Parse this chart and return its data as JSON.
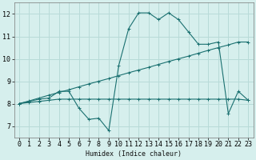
{
  "title": "",
  "xlabel": "Humidex (Indice chaleur)",
  "xlim": [
    -0.5,
    23.5
  ],
  "ylim": [
    6.5,
    12.5
  ],
  "yticks": [
    7,
    8,
    9,
    10,
    11,
    12
  ],
  "xticks": [
    0,
    1,
    2,
    3,
    4,
    5,
    6,
    7,
    8,
    9,
    10,
    11,
    12,
    13,
    14,
    15,
    16,
    17,
    18,
    19,
    20,
    21,
    22,
    23
  ],
  "background_color": "#d6efed",
  "grid_color": "#b8dbd8",
  "line_color": "#1a7070",
  "lines": [
    {
      "x": [
        0,
        1,
        2,
        3,
        4,
        5,
        6,
        7,
        8,
        9,
        10,
        11,
        12,
        13,
        14,
        15,
        16,
        17,
        18,
        19,
        20,
        21,
        22,
        23
      ],
      "y": [
        8.0,
        8.1,
        8.2,
        8.25,
        8.55,
        8.55,
        7.8,
        7.3,
        7.35,
        6.8,
        9.7,
        11.35,
        12.05,
        12.05,
        11.75,
        12.05,
        11.75,
        11.2,
        10.65,
        10.65,
        10.75,
        7.55,
        8.55,
        8.15
      ]
    },
    {
      "x": [
        0,
        1,
        2,
        3,
        4,
        5,
        6,
        7,
        8,
        9,
        10,
        11,
        12,
        13,
        14,
        15,
        16,
        17,
        18,
        19,
        20,
        21,
        22,
        23
      ],
      "y": [
        8.0,
        8.05,
        8.1,
        8.15,
        8.2,
        8.2,
        8.2,
        8.2,
        8.2,
        8.2,
        8.2,
        8.2,
        8.2,
        8.2,
        8.2,
        8.2,
        8.2,
        8.2,
        8.2,
        8.2,
        8.2,
        8.2,
        8.2,
        8.15
      ]
    },
    {
      "x": [
        0,
        1,
        2,
        3,
        4,
        5,
        6,
        7,
        8,
        9,
        10,
        11,
        12,
        13,
        14,
        15,
        16,
        17,
        18,
        19,
        20,
        21,
        22,
        23
      ],
      "y": [
        8.0,
        8.12,
        8.25,
        8.38,
        8.5,
        8.62,
        8.75,
        8.88,
        9.0,
        9.12,
        9.25,
        9.38,
        9.5,
        9.62,
        9.75,
        9.88,
        10.0,
        10.12,
        10.25,
        10.38,
        10.5,
        10.62,
        10.75,
        10.75
      ]
    }
  ]
}
